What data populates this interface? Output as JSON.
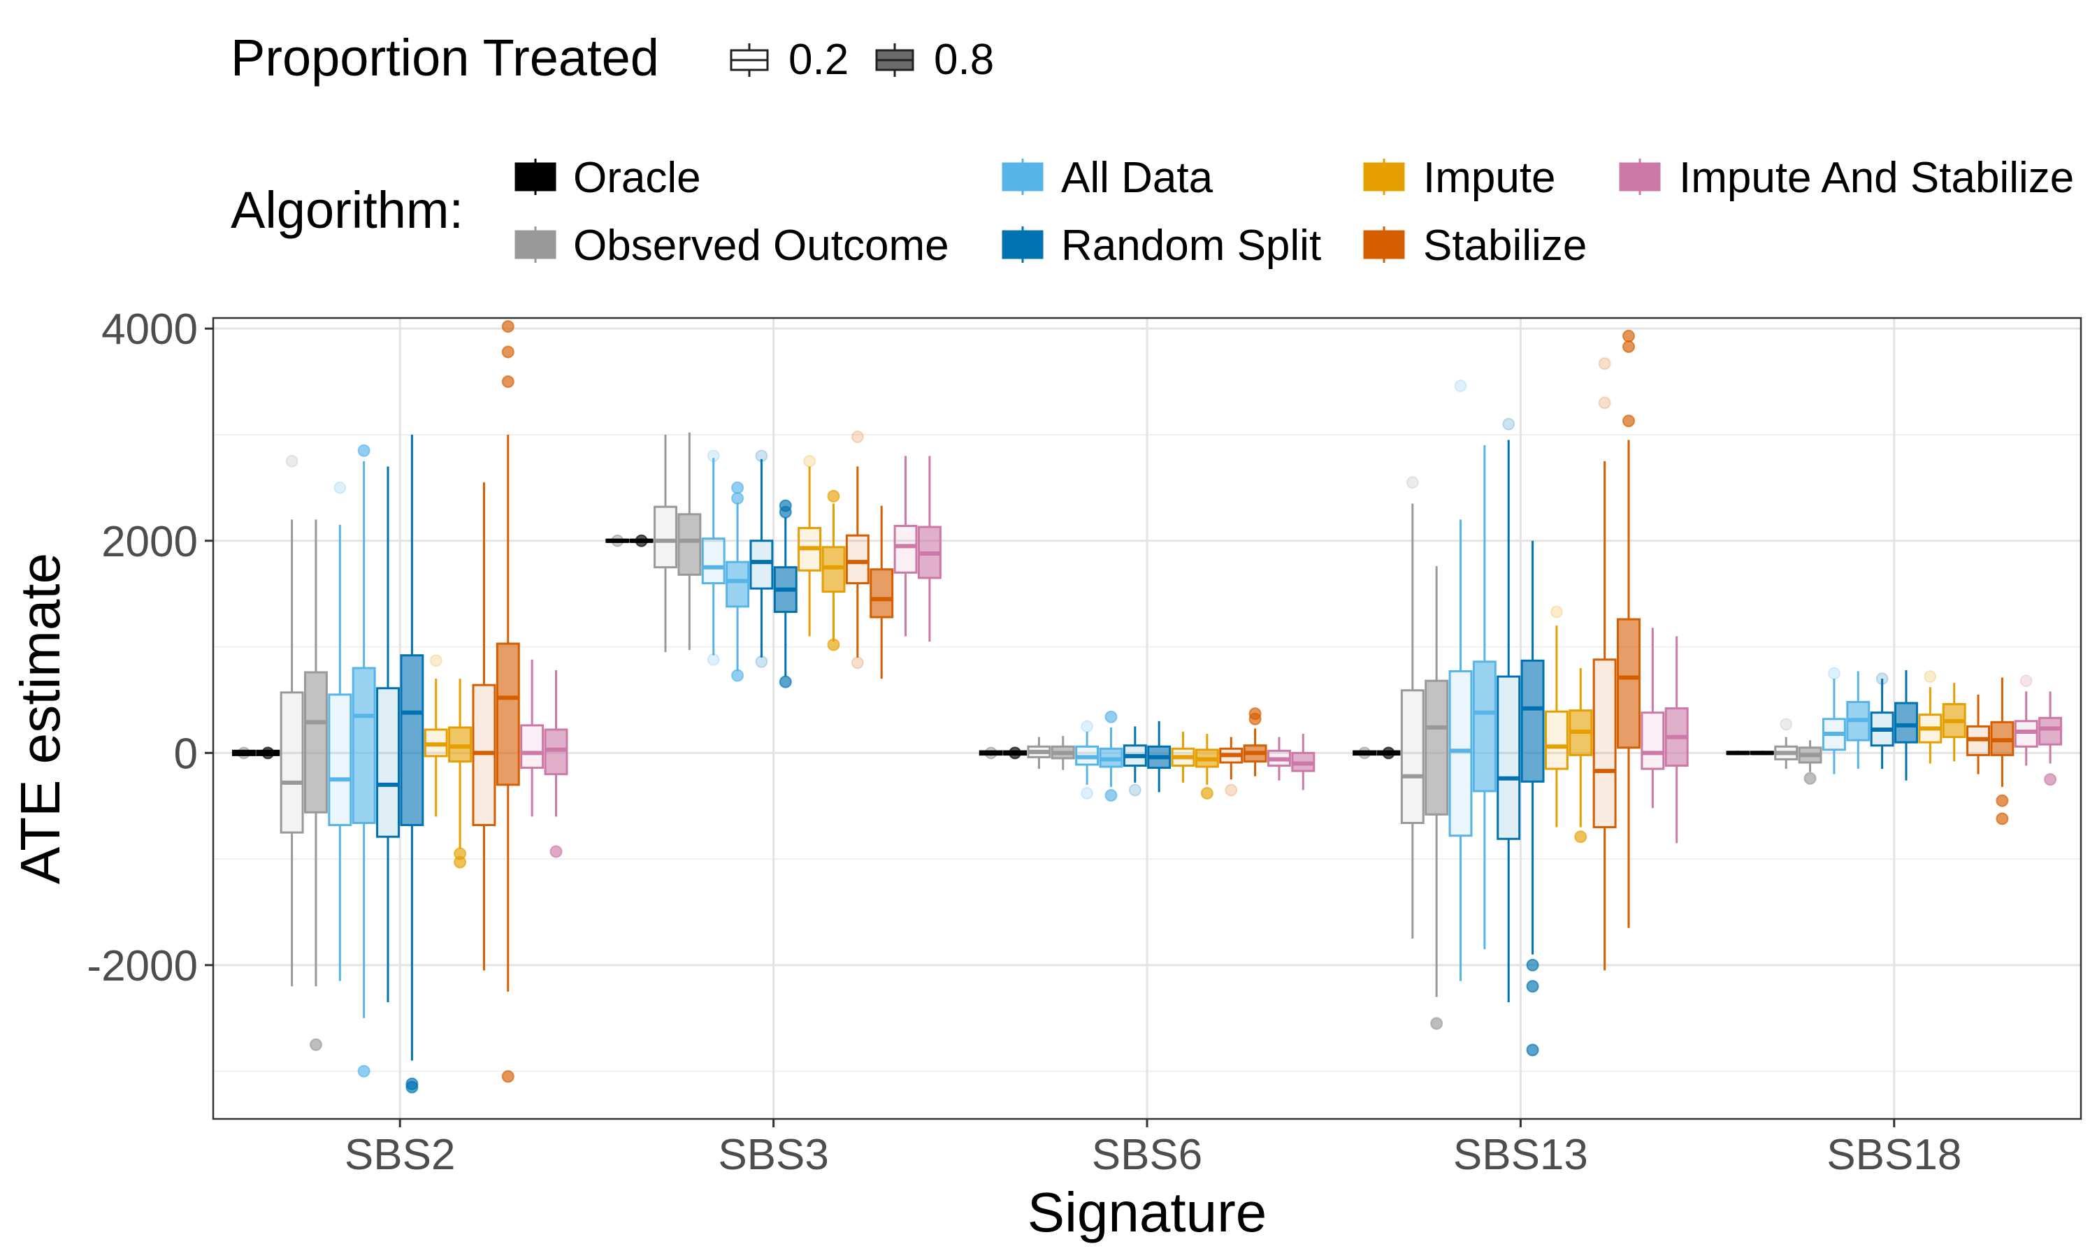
{
  "legend": {
    "proportion_title": "Proportion Treated",
    "proportion_levels": [
      "0.2",
      "0.8"
    ],
    "algorithm_title": "Algorithm:",
    "algorithms": [
      {
        "name": "Oracle",
        "color": "#000000"
      },
      {
        "name": "Observed Outcome",
        "color": "#999999"
      },
      {
        "name": "All Data",
        "color": "#56B4E9"
      },
      {
        "name": "Random Split",
        "color": "#0072B2"
      },
      {
        "name": "Impute",
        "color": "#E69F00"
      },
      {
        "name": "Stabilize",
        "color": "#D55E00"
      },
      {
        "name": "Impute And Stabilize",
        "color": "#CC79A7"
      }
    ]
  },
  "chart_data": {
    "type": "boxplot",
    "xlabel": "Signature",
    "ylabel": "ATE estimate",
    "categories": [
      "SBS2",
      "SBS3",
      "SBS6",
      "SBS13",
      "SBS18"
    ],
    "ylim": [
      -3450,
      4100
    ],
    "yticks": [
      -2000,
      0,
      2000,
      4000
    ],
    "grid": true,
    "legend_position": "top",
    "series": [
      {
        "algorithm": "Oracle",
        "proportion": "0.2",
        "boxes": [
          {
            "q1": -20,
            "median": 0,
            "q3": 20,
            "lo": -30,
            "hi": 30,
            "outliers": [
              0
            ]
          },
          {
            "q1": 1990,
            "median": 2000,
            "q3": 2010,
            "lo": 1980,
            "hi": 2020,
            "outliers": [
              2000
            ]
          },
          {
            "q1": -15,
            "median": 0,
            "q3": 15,
            "lo": -25,
            "hi": 25,
            "outliers": [
              0
            ]
          },
          {
            "q1": -15,
            "median": 0,
            "q3": 15,
            "lo": -25,
            "hi": 25,
            "outliers": [
              0
            ]
          },
          {
            "q1": -10,
            "median": 0,
            "q3": 10,
            "lo": -20,
            "hi": 20,
            "outliers": []
          }
        ]
      },
      {
        "algorithm": "Oracle",
        "proportion": "0.8",
        "boxes": [
          {
            "q1": -20,
            "median": 0,
            "q3": 20,
            "lo": -30,
            "hi": 30,
            "outliers": [
              0
            ]
          },
          {
            "q1": 1990,
            "median": 2000,
            "q3": 2010,
            "lo": 1980,
            "hi": 2020,
            "outliers": [
              2000
            ]
          },
          {
            "q1": -15,
            "median": 0,
            "q3": 15,
            "lo": -25,
            "hi": 25,
            "outliers": [
              0
            ]
          },
          {
            "q1": -15,
            "median": 0,
            "q3": 15,
            "lo": -25,
            "hi": 25,
            "outliers": [
              0
            ]
          },
          {
            "q1": -10,
            "median": 0,
            "q3": 10,
            "lo": -20,
            "hi": 20,
            "outliers": []
          }
        ]
      },
      {
        "algorithm": "Observed Outcome",
        "proportion": "0.2",
        "boxes": [
          {
            "q1": -750,
            "median": -280,
            "q3": 570,
            "lo": -2200,
            "hi": 2200,
            "outliers": [
              2750
            ]
          },
          {
            "q1": 1750,
            "median": 2000,
            "q3": 2320,
            "lo": 950,
            "hi": 3000,
            "outliers": []
          },
          {
            "q1": -40,
            "median": 10,
            "q3": 60,
            "lo": -150,
            "hi": 150,
            "outliers": []
          },
          {
            "q1": -660,
            "median": -220,
            "q3": 590,
            "lo": -1750,
            "hi": 2350,
            "outliers": [
              2550
            ]
          },
          {
            "q1": -60,
            "median": 0,
            "q3": 60,
            "lo": -150,
            "hi": 150,
            "outliers": [
              270
            ]
          }
        ]
      },
      {
        "algorithm": "Observed Outcome",
        "proportion": "0.8",
        "boxes": [
          {
            "q1": -560,
            "median": 290,
            "q3": 760,
            "lo": -2200,
            "hi": 2200,
            "outliers": [
              -2750
            ]
          },
          {
            "q1": 1680,
            "median": 2000,
            "q3": 2250,
            "lo": 970,
            "hi": 3020,
            "outliers": []
          },
          {
            "q1": -50,
            "median": 0,
            "q3": 60,
            "lo": -160,
            "hi": 160,
            "outliers": []
          },
          {
            "q1": -580,
            "median": 240,
            "q3": 680,
            "lo": -2300,
            "hi": 1760,
            "outliers": [
              -2550
            ]
          },
          {
            "q1": -90,
            "median": -20,
            "q3": 50,
            "lo": -180,
            "hi": 120,
            "outliers": [
              -240
            ]
          }
        ]
      },
      {
        "algorithm": "All Data",
        "proportion": "0.2",
        "boxes": [
          {
            "q1": -680,
            "median": -250,
            "q3": 550,
            "lo": -2150,
            "hi": 2150,
            "outliers": [
              2500
            ]
          },
          {
            "q1": 1600,
            "median": 1750,
            "q3": 2020,
            "lo": 920,
            "hi": 2780,
            "outliers": [
              2800,
              880
            ]
          },
          {
            "q1": -110,
            "median": -40,
            "q3": 60,
            "lo": -300,
            "hi": 200,
            "outliers": [
              250,
              -380
            ]
          },
          {
            "q1": -780,
            "median": 20,
            "q3": 770,
            "lo": -2150,
            "hi": 2200,
            "outliers": [
              3460
            ]
          },
          {
            "q1": 30,
            "median": 180,
            "q3": 320,
            "lo": -200,
            "hi": 700,
            "outliers": [
              750
            ]
          }
        ]
      },
      {
        "algorithm": "All Data",
        "proportion": "0.8",
        "boxes": [
          {
            "q1": -660,
            "median": 350,
            "q3": 800,
            "lo": -2500,
            "hi": 2750,
            "outliers": [
              2850,
              -3000
            ]
          },
          {
            "q1": 1380,
            "median": 1620,
            "q3": 1800,
            "lo": 770,
            "hi": 2360,
            "outliers": [
              2500,
              2400,
              730
            ]
          },
          {
            "q1": -130,
            "median": -60,
            "q3": 40,
            "lo": -320,
            "hi": 240,
            "outliers": [
              340,
              -400
            ]
          },
          {
            "q1": -360,
            "median": 380,
            "q3": 860,
            "lo": -1850,
            "hi": 2900,
            "outliers": []
          },
          {
            "q1": 120,
            "median": 310,
            "q3": 480,
            "lo": -150,
            "hi": 770,
            "outliers": []
          }
        ]
      },
      {
        "algorithm": "Random Split",
        "proportion": "0.2",
        "boxes": [
          {
            "q1": -790,
            "median": -300,
            "q3": 610,
            "lo": -2350,
            "hi": 2700,
            "outliers": []
          },
          {
            "q1": 1550,
            "median": 1800,
            "q3": 2000,
            "lo": 900,
            "hi": 2770,
            "outliers": [
              2800,
              860
            ]
          },
          {
            "q1": -120,
            "median": -30,
            "q3": 70,
            "lo": -280,
            "hi": 250,
            "outliers": [
              -350
            ]
          },
          {
            "q1": -810,
            "median": -240,
            "q3": 720,
            "lo": -2350,
            "hi": 2950,
            "outliers": [
              3100
            ]
          },
          {
            "q1": 70,
            "median": 220,
            "q3": 380,
            "lo": -150,
            "hi": 700,
            "outliers": [
              700
            ]
          }
        ]
      },
      {
        "algorithm": "Random Split",
        "proportion": "0.8",
        "boxes": [
          {
            "q1": -680,
            "median": 380,
            "q3": 920,
            "lo": -2900,
            "hi": 3000,
            "outliers": [
              -3120,
              -3150
            ]
          },
          {
            "q1": 1330,
            "median": 1540,
            "q3": 1750,
            "lo": 720,
            "hi": 2220,
            "outliers": [
              2330,
              2270,
              670
            ]
          },
          {
            "q1": -140,
            "median": -40,
            "q3": 60,
            "lo": -370,
            "hi": 300,
            "outliers": []
          },
          {
            "q1": -270,
            "median": 420,
            "q3": 870,
            "lo": -1900,
            "hi": 2000,
            "outliers": [
              -2000,
              -2200,
              -2800
            ]
          },
          {
            "q1": 100,
            "median": 260,
            "q3": 470,
            "lo": -260,
            "hi": 780,
            "outliers": []
          }
        ]
      },
      {
        "algorithm": "Impute",
        "proportion": "0.2",
        "boxes": [
          {
            "q1": -30,
            "median": 80,
            "q3": 220,
            "lo": -600,
            "hi": 700,
            "outliers": [
              870
            ]
          },
          {
            "q1": 1720,
            "median": 1930,
            "q3": 2120,
            "lo": 1100,
            "hi": 2700,
            "outliers": [
              2750
            ]
          },
          {
            "q1": -120,
            "median": -40,
            "q3": 40,
            "lo": -280,
            "hi": 200,
            "outliers": []
          },
          {
            "q1": -150,
            "median": 60,
            "q3": 390,
            "lo": -700,
            "hi": 1200,
            "outliers": [
              1330
            ]
          },
          {
            "q1": 100,
            "median": 230,
            "q3": 360,
            "lo": -100,
            "hi": 620,
            "outliers": [
              720
            ]
          }
        ]
      },
      {
        "algorithm": "Impute",
        "proportion": "0.8",
        "boxes": [
          {
            "q1": -80,
            "median": 60,
            "q3": 240,
            "lo": -900,
            "hi": 700,
            "outliers": [
              -950,
              -1030
            ]
          },
          {
            "q1": 1520,
            "median": 1750,
            "q3": 1940,
            "lo": 1050,
            "hi": 2350,
            "outliers": [
              2420,
              1020
            ]
          },
          {
            "q1": -130,
            "median": -60,
            "q3": 30,
            "lo": -300,
            "hi": 180,
            "outliers": [
              -380
            ]
          },
          {
            "q1": -20,
            "median": 200,
            "q3": 400,
            "lo": -700,
            "hi": 800,
            "outliers": [
              -790
            ]
          },
          {
            "q1": 150,
            "median": 300,
            "q3": 460,
            "lo": -80,
            "hi": 660,
            "outliers": []
          }
        ]
      },
      {
        "algorithm": "Stabilize",
        "proportion": "0.2",
        "boxes": [
          {
            "q1": -680,
            "median": 0,
            "q3": 640,
            "lo": -2050,
            "hi": 2550,
            "outliers": []
          },
          {
            "q1": 1600,
            "median": 1800,
            "q3": 2050,
            "lo": 900,
            "hi": 2700,
            "outliers": [
              2980,
              850
            ]
          },
          {
            "q1": -90,
            "median": -20,
            "q3": 40,
            "lo": -250,
            "hi": 150,
            "outliers": [
              -350
            ]
          },
          {
            "q1": -700,
            "median": -170,
            "q3": 880,
            "lo": -2050,
            "hi": 2750,
            "outliers": [
              3670,
              3300
            ]
          },
          {
            "q1": -20,
            "median": 130,
            "q3": 250,
            "lo": -200,
            "hi": 550,
            "outliers": []
          }
        ]
      },
      {
        "algorithm": "Stabilize",
        "proportion": "0.8",
        "boxes": [
          {
            "q1": -300,
            "median": 520,
            "q3": 1030,
            "lo": -2250,
            "hi": 3000,
            "outliers": [
              4020,
              3780,
              3500,
              -3050
            ]
          },
          {
            "q1": 1280,
            "median": 1450,
            "q3": 1730,
            "lo": 700,
            "hi": 2330,
            "outliers": []
          },
          {
            "q1": -80,
            "median": 0,
            "q3": 70,
            "lo": -220,
            "hi": 230,
            "outliers": [
              370,
              320
            ]
          },
          {
            "q1": 50,
            "median": 710,
            "q3": 1260,
            "lo": -1650,
            "hi": 2950,
            "outliers": [
              3930,
              3830,
              3130
            ]
          },
          {
            "q1": -20,
            "median": 120,
            "q3": 290,
            "lo": -320,
            "hi": 710,
            "outliers": [
              -450,
              -620
            ]
          }
        ]
      },
      {
        "algorithm": "Impute And Stabilize",
        "proportion": "0.2",
        "boxes": [
          {
            "q1": -140,
            "median": 0,
            "q3": 260,
            "lo": -600,
            "hi": 880,
            "outliers": []
          },
          {
            "q1": 1700,
            "median": 1950,
            "q3": 2140,
            "lo": 1100,
            "hi": 2800,
            "outliers": []
          },
          {
            "q1": -120,
            "median": -60,
            "q3": 20,
            "lo": -260,
            "hi": 150,
            "outliers": []
          },
          {
            "q1": -150,
            "median": 0,
            "q3": 380,
            "lo": -520,
            "hi": 1180,
            "outliers": []
          },
          {
            "q1": 60,
            "median": 200,
            "q3": 300,
            "lo": -120,
            "hi": 580,
            "outliers": [
              680
            ]
          }
        ]
      },
      {
        "algorithm": "Impute And Stabilize",
        "proportion": "0.8",
        "boxes": [
          {
            "q1": -200,
            "median": 30,
            "q3": 220,
            "lo": -600,
            "hi": 780,
            "outliers": [
              -930
            ]
          },
          {
            "q1": 1650,
            "median": 1880,
            "q3": 2130,
            "lo": 1050,
            "hi": 2800,
            "outliers": []
          },
          {
            "q1": -170,
            "median": -100,
            "q3": 0,
            "lo": -350,
            "hi": 180,
            "outliers": []
          },
          {
            "q1": -120,
            "median": 150,
            "q3": 420,
            "lo": -850,
            "hi": 1100,
            "outliers": []
          },
          {
            "q1": 80,
            "median": 230,
            "q3": 330,
            "lo": -100,
            "hi": 580,
            "outliers": [
              -250
            ]
          }
        ]
      }
    ]
  }
}
